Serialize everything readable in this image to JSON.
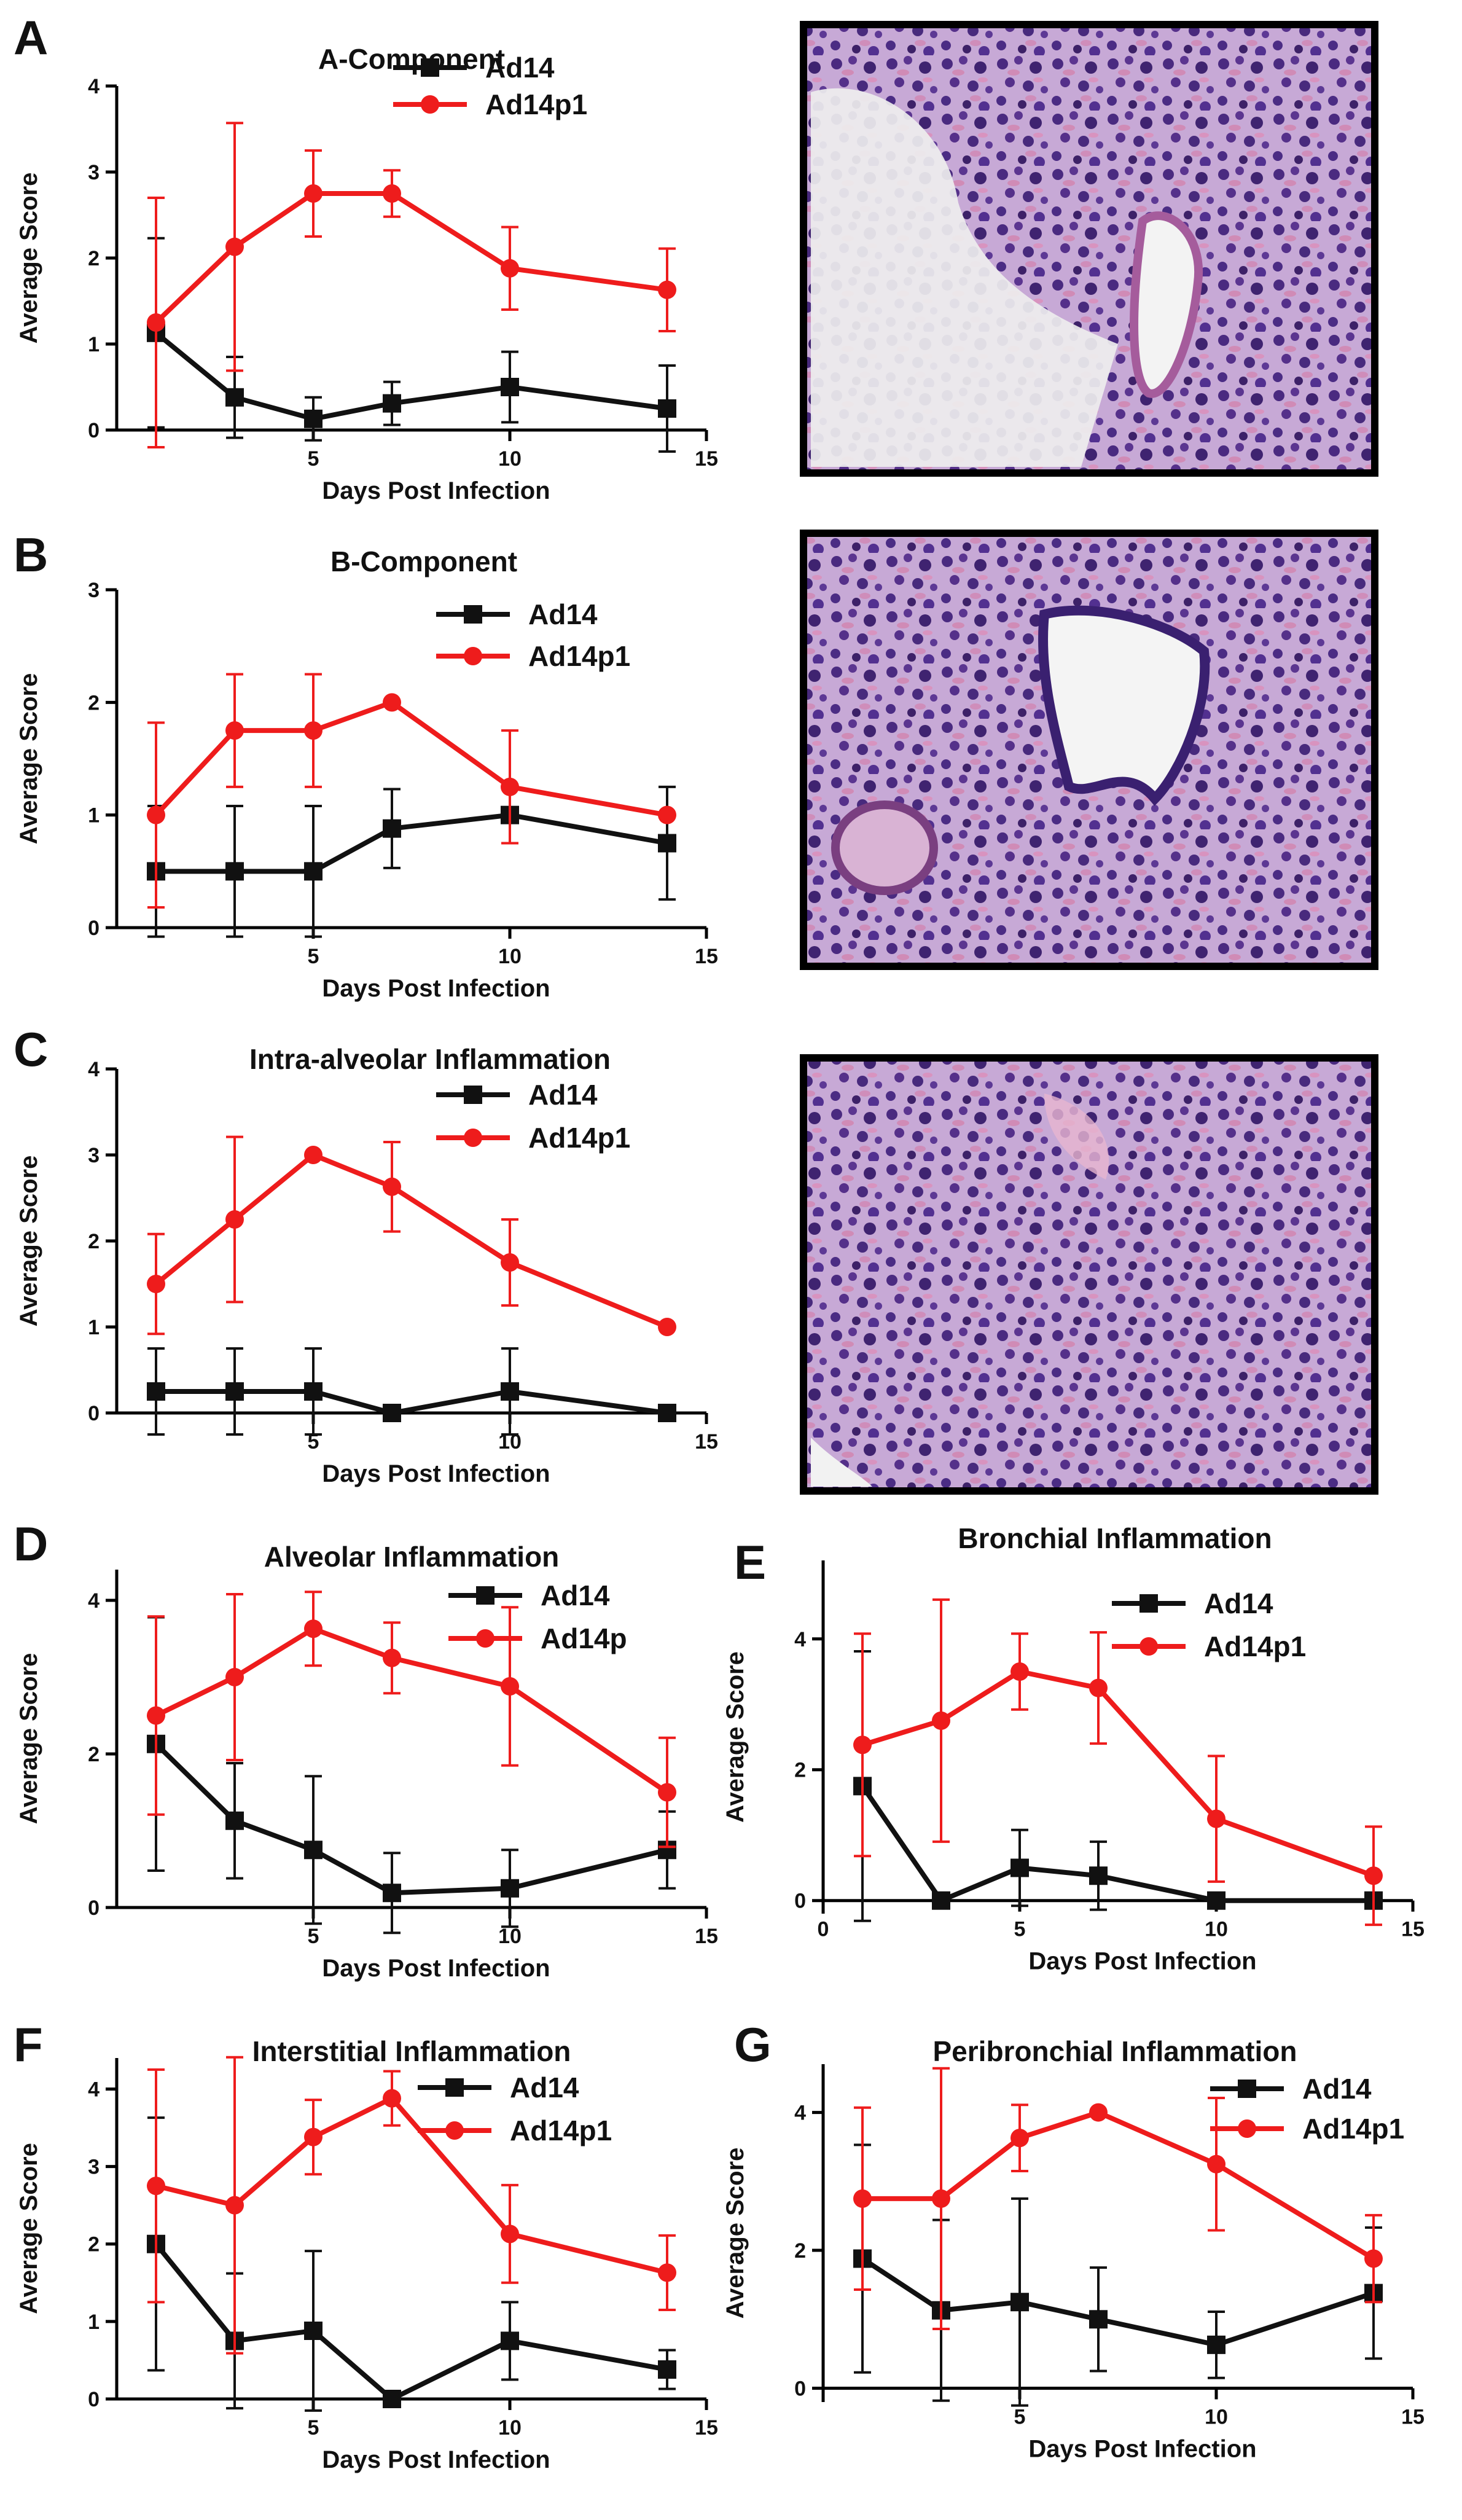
{
  "panels": [
    {
      "letter": "A"
    },
    {
      "letter": "B"
    },
    {
      "letter": "C"
    },
    {
      "letter": "D"
    },
    {
      "letter": "E"
    },
    {
      "letter": "F"
    },
    {
      "letter": "G"
    }
  ],
  "colors": {
    "ad14": "#111111",
    "ad14p1": "#ee1c1c"
  },
  "chart_data": [
    {
      "type": "line",
      "panel": "A",
      "title": "A-Component",
      "xlabel": "Days Post Infection",
      "ylabel": "Average Score",
      "xlim": [
        0,
        15
      ],
      "ylim": [
        0,
        4
      ],
      "xticks": [
        5,
        10,
        15
      ],
      "yticks": [
        0,
        1,
        2,
        3,
        4
      ],
      "grid": false,
      "legend_position": "top-right",
      "x": [
        1,
        3,
        5,
        7,
        10,
        14
      ],
      "series": [
        {
          "name": "Ad14",
          "color": "#111111",
          "marker": "square",
          "values": [
            1.13,
            0.38,
            0.13,
            0.31,
            0.5,
            0.25
          ],
          "error": [
            1.1,
            0.47,
            0.25,
            0.25,
            0.41,
            0.5
          ]
        },
        {
          "name": "Ad14p1",
          "color": "#ee1c1c",
          "marker": "circle",
          "values": [
            1.25,
            2.13,
            2.75,
            2.75,
            1.88,
            1.63
          ],
          "error": [
            1.45,
            1.44,
            0.5,
            0.27,
            0.48,
            0.48
          ]
        }
      ]
    },
    {
      "type": "line",
      "panel": "B",
      "title": "B-Component",
      "xlabel": "Days Post Infection",
      "ylabel": "Average Score",
      "xlim": [
        0,
        15
      ],
      "ylim": [
        0,
        3
      ],
      "xticks": [
        5,
        10,
        15
      ],
      "yticks": [
        0,
        1,
        2,
        3
      ],
      "grid": false,
      "legend_position": "top-right",
      "x": [
        1,
        3,
        5,
        7,
        10,
        14
      ],
      "series": [
        {
          "name": "Ad14",
          "color": "#111111",
          "marker": "square",
          "values": [
            0.5,
            0.5,
            0.5,
            0.88,
            1.0,
            0.75
          ],
          "error": [
            0.58,
            0.58,
            0.58,
            0.35,
            0.0,
            0.5
          ]
        },
        {
          "name": "Ad14p1",
          "color": "#ee1c1c",
          "marker": "circle",
          "values": [
            1.0,
            1.75,
            1.75,
            2.0,
            1.25,
            1.0
          ],
          "error": [
            0.82,
            0.5,
            0.5,
            0.0,
            0.5,
            0.0
          ]
        }
      ]
    },
    {
      "type": "line",
      "panel": "C",
      "title": "Intra-alveolar Inflammation",
      "xlabel": "Days Post Infection",
      "ylabel": "Average Score",
      "xlim": [
        0,
        15
      ],
      "ylim": [
        0,
        4
      ],
      "xticks": [
        5,
        10,
        15
      ],
      "yticks": [
        0,
        1,
        2,
        3,
        4
      ],
      "grid": false,
      "legend_position": "top-right",
      "x": [
        1,
        3,
        5,
        7,
        10,
        14
      ],
      "series": [
        {
          "name": "Ad14",
          "color": "#111111",
          "marker": "square",
          "values": [
            0.25,
            0.25,
            0.25,
            0.0,
            0.25,
            0.0
          ],
          "error": [
            0.5,
            0.5,
            0.5,
            0.0,
            0.5,
            0.0
          ]
        },
        {
          "name": "Ad14p1",
          "color": "#ee1c1c",
          "marker": "circle",
          "values": [
            1.5,
            2.25,
            3.0,
            2.63,
            1.75,
            1.0
          ],
          "error": [
            0.58,
            0.96,
            0.0,
            0.52,
            0.5,
            0.0
          ]
        }
      ]
    },
    {
      "type": "line",
      "panel": "D",
      "title": "Alveolar Inflammation",
      "xlabel": "Days Post Infection",
      "ylabel": "Average Score",
      "xlim": [
        0,
        15
      ],
      "ylim": [
        0,
        4.4
      ],
      "xticks": [
        5,
        10,
        15
      ],
      "yticks": [
        0,
        2,
        4
      ],
      "grid": false,
      "legend_position": "top-right",
      "x": [
        1,
        3,
        5,
        7,
        10,
        14
      ],
      "series": [
        {
          "name": "Ad14",
          "color": "#111111",
          "marker": "square",
          "values": [
            2.13,
            1.13,
            0.75,
            0.19,
            0.25,
            0.75
          ],
          "error": [
            1.65,
            0.75,
            0.96,
            0.52,
            0.5,
            0.5
          ]
        },
        {
          "name": "Ad14p",
          "color": "#ee1c1c",
          "marker": "circle",
          "values": [
            2.5,
            3.0,
            3.63,
            3.25,
            2.88,
            1.5
          ],
          "error": [
            1.29,
            1.08,
            0.48,
            0.46,
            1.03,
            0.71
          ]
        }
      ]
    },
    {
      "type": "line",
      "panel": "E",
      "title": "Bronchial Inflammation",
      "xlabel": "Days Post Infection",
      "ylabel": "Average Score",
      "xlim": [
        0,
        15
      ],
      "ylim": [
        -0.2,
        5.2
      ],
      "xticks": [
        0,
        5,
        10,
        15
      ],
      "yticks": [
        0,
        2,
        4
      ],
      "grid": false,
      "legend_position": "top-right",
      "x": [
        1,
        3,
        5,
        7,
        10,
        14
      ],
      "series": [
        {
          "name": "Ad14",
          "color": "#111111",
          "marker": "square",
          "values": [
            1.75,
            0.0,
            0.5,
            0.38,
            0.0,
            0.0
          ],
          "error": [
            2.06,
            0.0,
            0.58,
            0.52,
            0.0,
            0.0
          ]
        },
        {
          "name": "Ad14p1",
          "color": "#ee1c1c",
          "marker": "circle",
          "values": [
            2.38,
            2.75,
            3.5,
            3.25,
            1.25,
            0.38
          ],
          "error": [
            1.7,
            1.85,
            0.58,
            0.85,
            0.96,
            0.75
          ]
        }
      ]
    },
    {
      "type": "line",
      "panel": "F",
      "title": "Interstitial Inflammation",
      "xlabel": "Days Post Infection",
      "ylabel": "Average Score",
      "xlim": [
        0,
        15
      ],
      "ylim": [
        0,
        4.4
      ],
      "xticks": [
        5,
        10,
        15
      ],
      "yticks": [
        0,
        1,
        2,
        3,
        4
      ],
      "grid": false,
      "legend_position": "top-right",
      "x": [
        1,
        3,
        5,
        7,
        10,
        14
      ],
      "series": [
        {
          "name": "Ad14",
          "color": "#111111",
          "marker": "square",
          "values": [
            2.0,
            0.75,
            0.88,
            0.0,
            0.75,
            0.38
          ],
          "error": [
            1.63,
            0.87,
            1.03,
            0.0,
            0.5,
            0.25
          ]
        },
        {
          "name": "Ad14p1",
          "color": "#ee1c1c",
          "marker": "circle",
          "values": [
            2.75,
            2.5,
            3.38,
            3.88,
            2.13,
            1.63
          ],
          "error": [
            1.5,
            1.91,
            0.48,
            0.35,
            0.63,
            0.48
          ]
        }
      ]
    },
    {
      "type": "line",
      "panel": "G",
      "title": "Peribronchial Inflammation",
      "xlabel": "Days Post Infection",
      "ylabel": "Average Score",
      "xlim": [
        0,
        15
      ],
      "ylim": [
        -0.2,
        4.7
      ],
      "xticks": [
        5,
        10,
        15
      ],
      "yticks": [
        0,
        2,
        4
      ],
      "grid": false,
      "legend_position": "top-right",
      "x": [
        1,
        3,
        5,
        7,
        10,
        14
      ],
      "series": [
        {
          "name": "Ad14",
          "color": "#111111",
          "marker": "square",
          "values": [
            1.88,
            1.13,
            1.25,
            1.0,
            0.63,
            1.38
          ],
          "error": [
            1.65,
            1.31,
            1.5,
            0.75,
            0.48,
            0.95
          ]
        },
        {
          "name": "Ad14p1",
          "color": "#ee1c1c",
          "marker": "circle",
          "values": [
            2.75,
            2.75,
            3.63,
            4.0,
            3.25,
            1.88
          ],
          "error": [
            1.32,
            1.89,
            0.48,
            0.0,
            0.96,
            0.63
          ]
        }
      ]
    }
  ]
}
